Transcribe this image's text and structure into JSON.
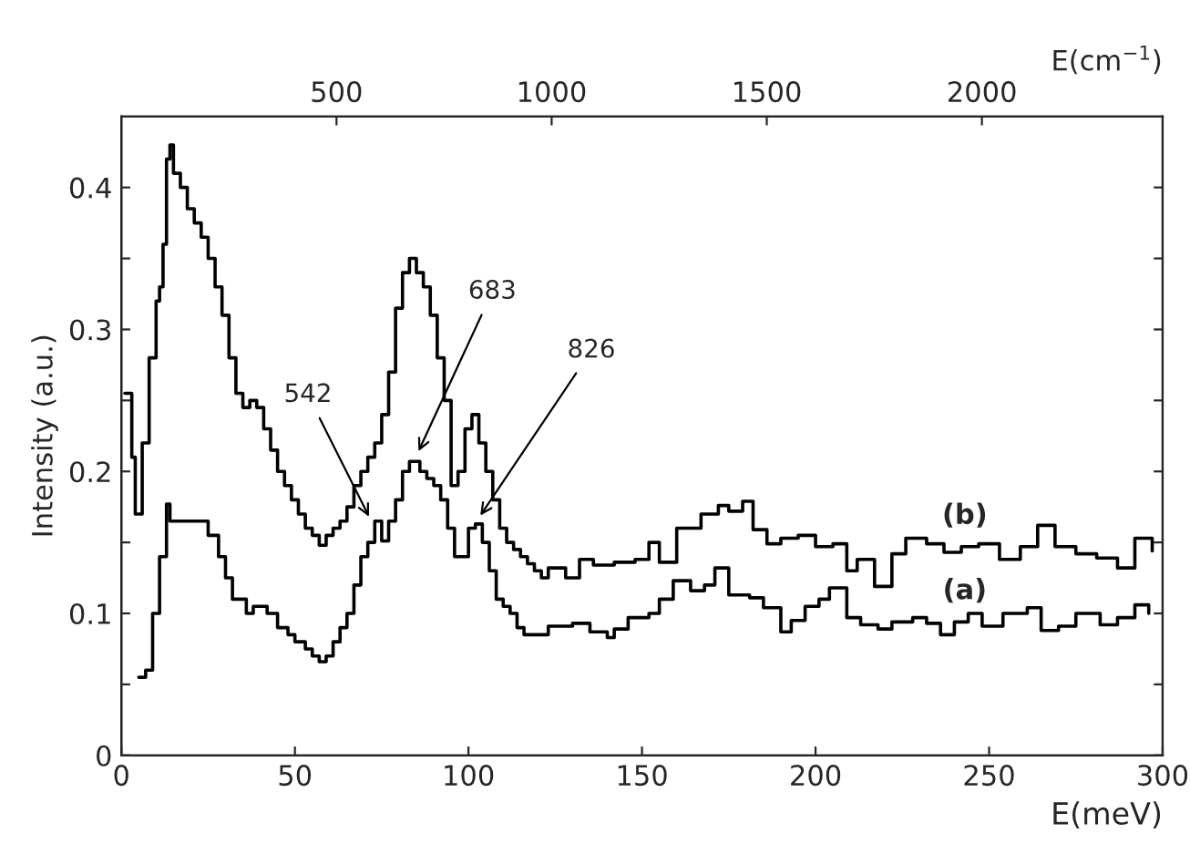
{
  "chart_data": {
    "type": "step",
    "xlabel": "E(meV)",
    "ylabel": "Intensity (a.u.)",
    "x2label": "E(cm$^{−1}$)",
    "xlim": [
      0,
      300
    ],
    "xticks": [
      0,
      50,
      100,
      150,
      200,
      250,
      300
    ],
    "ylim": [
      0,
      0.45
    ],
    "yticks": [
      0,
      {
        "value": 0.05,
        "label": null
      },
      0.1,
      {
        "value": 0.15,
        "label": null
      },
      0.2,
      {
        "value": 0.25,
        "label": null
      },
      0.3,
      {
        "value": 0.35,
        "label": null
      },
      0.4
    ],
    "x2lim": [
      0,
      2420
    ],
    "x2ticks": [
      500,
      1000,
      1500,
      2000
    ],
    "grid": false,
    "legend": false,
    "marker": "none",
    "line_style": "solid",
    "series": [
      {
        "name": "(b)",
        "color": "#000000",
        "x": [
          1,
          3,
          4,
          6,
          8,
          10,
          11,
          12,
          13,
          14,
          15,
          17,
          19,
          21,
          23,
          25,
          27,
          29,
          31,
          33,
          35,
          37,
          39,
          41,
          43,
          45,
          47,
          49,
          51,
          53,
          55,
          57,
          59,
          61,
          63,
          65,
          67,
          69,
          71,
          73,
          75,
          77,
          79,
          81,
          83,
          85,
          87,
          89,
          91,
          93,
          95,
          97,
          99,
          101,
          103,
          105,
          107,
          109,
          111,
          113,
          115,
          117,
          119,
          121,
          123,
          128,
          132,
          136,
          142,
          148,
          152,
          155,
          160,
          167,
          172,
          175,
          179,
          182,
          186,
          190,
          195,
          200,
          205,
          209,
          212,
          217,
          222,
          226,
          232,
          237,
          242,
          247,
          253,
          259,
          264,
          269,
          275,
          281,
          287,
          292,
          297
        ],
        "values": [
          0.255,
          0.21,
          0.17,
          0.22,
          0.28,
          0.32,
          0.33,
          0.36,
          0.42,
          0.43,
          0.41,
          0.4,
          0.385,
          0.375,
          0.365,
          0.35,
          0.33,
          0.31,
          0.28,
          0.255,
          0.245,
          0.25,
          0.245,
          0.23,
          0.215,
          0.2,
          0.19,
          0.18,
          0.17,
          0.16,
          0.155,
          0.148,
          0.155,
          0.16,
          0.165,
          0.175,
          0.19,
          0.2,
          0.21,
          0.22,
          0.24,
          0.27,
          0.315,
          0.34,
          0.35,
          0.34,
          0.33,
          0.31,
          0.28,
          0.25,
          0.19,
          0.2,
          0.23,
          0.24,
          0.22,
          0.2,
          0.18,
          0.16,
          0.15,
          0.145,
          0.14,
          0.135,
          0.13,
          0.125,
          0.132,
          0.125,
          0.138,
          0.134,
          0.136,
          0.138,
          0.15,
          0.136,
          0.16,
          0.17,
          0.176,
          0.172,
          0.179,
          0.159,
          0.149,
          0.153,
          0.155,
          0.147,
          0.149,
          0.13,
          0.138,
          0.119,
          0.142,
          0.153,
          0.149,
          0.143,
          0.147,
          0.149,
          0.138,
          0.147,
          0.162,
          0.147,
          0.142,
          0.139,
          0.132,
          0.153,
          0.144
        ]
      },
      {
        "name": "(a)",
        "color": "#000000",
        "x": [
          5,
          7,
          9,
          11,
          13,
          14,
          22,
          25,
          28,
          30,
          32,
          36,
          38,
          42,
          45,
          48,
          50,
          53,
          55,
          57,
          59,
          61,
          63,
          65,
          67,
          69,
          71,
          73,
          75,
          77,
          79,
          81,
          83,
          86,
          88,
          90,
          92,
          94,
          96,
          98,
          100,
          102,
          104,
          106,
          108,
          110,
          112,
          114,
          116,
          120,
          123,
          130,
          135,
          140,
          142,
          146,
          152,
          155,
          159,
          164,
          168,
          171,
          175,
          181,
          185,
          190,
          193,
          197,
          201,
          204,
          209,
          213,
          218,
          222,
          228,
          232,
          236,
          240,
          244,
          248,
          254,
          261,
          265,
          270,
          275,
          282,
          287,
          292,
          296
        ],
        "values": [
          0.055,
          0.06,
          0.1,
          0.14,
          0.177,
          0.165,
          0.165,
          0.155,
          0.14,
          0.125,
          0.11,
          0.1,
          0.105,
          0.1,
          0.09,
          0.085,
          0.08,
          0.075,
          0.07,
          0.066,
          0.07,
          0.08,
          0.09,
          0.1,
          0.12,
          0.14,
          0.15,
          0.165,
          0.151,
          0.165,
          0.18,
          0.2,
          0.207,
          0.2,
          0.195,
          0.19,
          0.18,
          0.16,
          0.14,
          0.14,
          0.16,
          0.163,
          0.15,
          0.13,
          0.11,
          0.105,
          0.1,
          0.09,
          0.085,
          0.085,
          0.091,
          0.093,
          0.087,
          0.083,
          0.089,
          0.097,
          0.1,
          0.11,
          0.123,
          0.116,
          0.12,
          0.132,
          0.113,
          0.111,
          0.104,
          0.087,
          0.095,
          0.105,
          0.11,
          0.118,
          0.097,
          0.092,
          0.089,
          0.094,
          0.097,
          0.093,
          0.085,
          0.094,
          0.1,
          0.091,
          0.1,
          0.104,
          0.088,
          0.091,
          0.1,
          0.092,
          0.097,
          0.106,
          0.1
        ]
      }
    ],
    "annotations": [
      {
        "text": "542",
        "x": 72,
        "y": 0.165
      },
      {
        "text": "683",
        "x": 85,
        "y": 0.211
      },
      {
        "text": "826",
        "x": 102.6,
        "y": 0.166
      }
    ]
  }
}
